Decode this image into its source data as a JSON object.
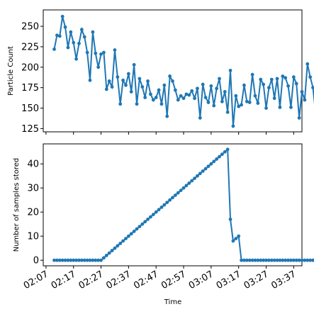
{
  "chart_data": [
    {
      "type": "line",
      "ylabel": "Particle Count",
      "xlabel": "",
      "xlim_min": [
        126,
        220
      ],
      "ylim": [
        121,
        270
      ],
      "yticks": [
        125,
        150,
        175,
        200,
        225,
        250
      ],
      "grid": false,
      "color": "#1f77b4",
      "x_start_min": 130,
      "x_step_min": 1,
      "values": [
        222,
        239,
        238,
        262,
        249,
        224,
        243,
        230,
        210,
        229,
        246,
        237,
        218,
        184,
        243,
        217,
        200,
        216,
        218,
        173,
        183,
        176,
        221,
        188,
        155,
        184,
        178,
        192,
        170,
        203,
        155,
        186,
        176,
        163,
        183,
        167,
        160,
        163,
        172,
        155,
        178,
        140,
        189,
        183,
        172,
        160,
        165,
        162,
        167,
        166,
        171,
        162,
        174,
        138,
        179,
        163,
        157,
        177,
        153,
        174,
        186,
        158,
        170,
        145,
        196,
        128,
        165,
        152,
        154,
        178,
        158,
        157,
        191,
        165,
        156,
        185,
        179,
        150,
        175,
        185,
        162,
        186,
        151,
        189,
        187,
        177,
        151,
        188,
        180,
        138,
        170,
        160,
        204,
        188,
        175,
        143
      ]
    },
    {
      "type": "line",
      "ylabel": "Number of samples stored",
      "xlabel": "Time",
      "xlim_min": [
        126,
        220
      ],
      "ylim": [
        -2.3,
        48.3
      ],
      "yticks": [
        0,
        10,
        20,
        30,
        40
      ],
      "grid": false,
      "color": "#1f77b4",
      "x_start_min": 130,
      "x_step_min": 1,
      "values": [
        0,
        0,
        0,
        0,
        0,
        0,
        0,
        0,
        0,
        0,
        0,
        0,
        0,
        0,
        0,
        0,
        0,
        0,
        1,
        2,
        3,
        4,
        5,
        6,
        7,
        8,
        9,
        10,
        11,
        12,
        13,
        14,
        15,
        16,
        17,
        18,
        19,
        20,
        21,
        22,
        23,
        24,
        25,
        26,
        27,
        28,
        29,
        30,
        31,
        32,
        33,
        34,
        35,
        36,
        37,
        38,
        39,
        40,
        41,
        42,
        43,
        44,
        45,
        46,
        17,
        8,
        9,
        10,
        0,
        0,
        0,
        0,
        0,
        0,
        0,
        0,
        0,
        0,
        0,
        0,
        0,
        0,
        0,
        0,
        0,
        0,
        0,
        0,
        0,
        0,
        0,
        0,
        0,
        0,
        0,
        0
      ],
      "xticks_min": [
        127,
        137,
        147,
        157,
        167,
        177,
        187,
        197,
        207,
        217
      ],
      "xtick_labels": [
        "02:07",
        "02:17",
        "02:27",
        "02:37",
        "02:47",
        "02:57",
        "03:07",
        "03:17",
        "03:27",
        "03:37"
      ]
    }
  ]
}
